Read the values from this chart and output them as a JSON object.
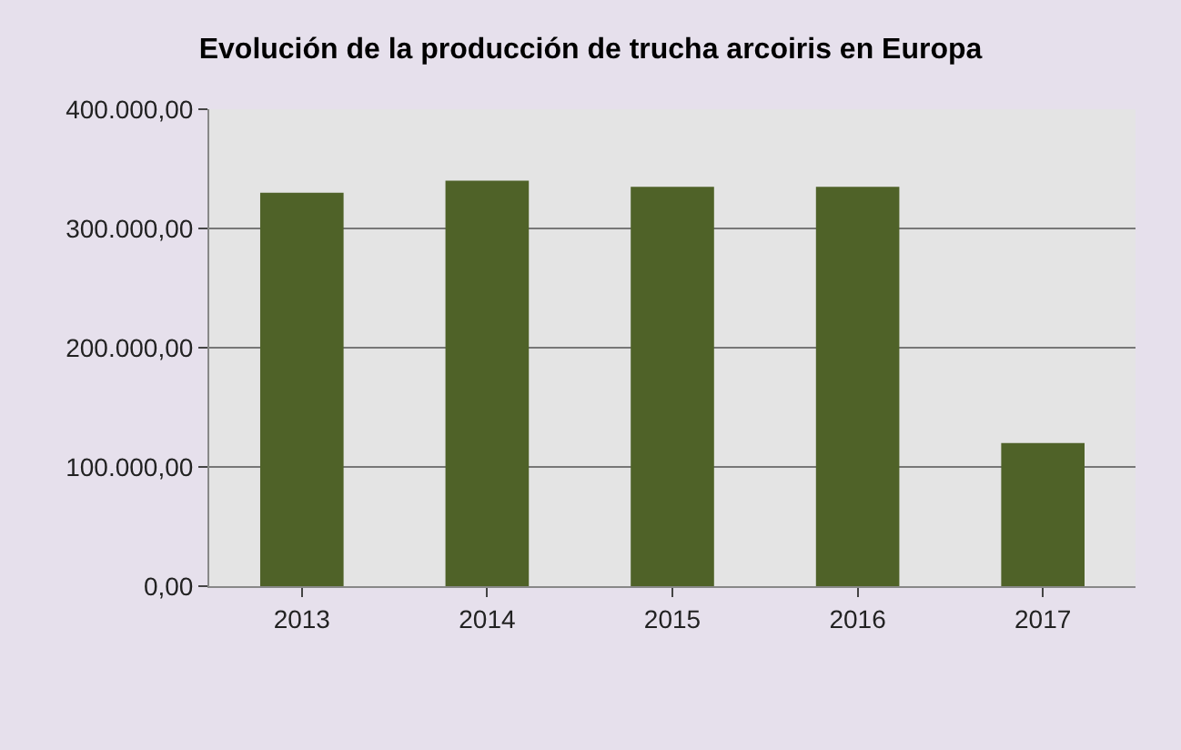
{
  "chart_data": {
    "type": "bar",
    "title": "Evolución de la producción de trucha arcoiris en Europa",
    "categories": [
      "2013",
      "2014",
      "2015",
      "2016",
      "2017"
    ],
    "values": [
      330000,
      340000,
      335000,
      335000,
      120000
    ],
    "color": "#4f6228",
    "ylim": [
      0,
      400000
    ],
    "yticks": [
      {
        "value": 0,
        "label": "0,00"
      },
      {
        "value": 100000,
        "label": "100.000,00"
      },
      {
        "value": 200000,
        "label": "200.000,00"
      },
      {
        "value": 300000,
        "label": "300.000,00"
      },
      {
        "value": 400000,
        "label": "400.000,00"
      }
    ],
    "grid": "y"
  }
}
